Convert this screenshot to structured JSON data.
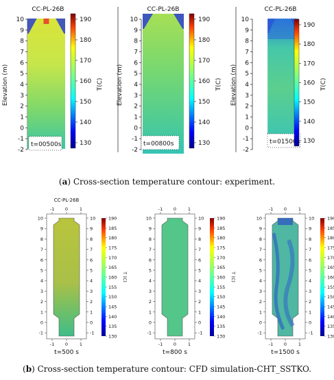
{
  "captions": {
    "a_letter": "a",
    "a_text": "Cross-section temperature contour: experiment.",
    "b_letter": "b",
    "b_text": "Cross-section temperature contour: CFD simulation-CHT_SSTKO."
  },
  "experiment": {
    "title": "CC-PL-26B",
    "y_axis_label": "Elevation (m)",
    "y_ticks": [
      "10",
      "9",
      "8",
      "7",
      "6",
      "5",
      "4",
      "3",
      "2",
      "1",
      "0",
      "-1",
      "-2"
    ],
    "colorbar_label": "T(C)",
    "colorbar_ticks": [
      "190",
      "180",
      "170",
      "160",
      "150",
      "140",
      "130"
    ],
    "colorbar_range": [
      130,
      190
    ],
    "panels": [
      {
        "time_label": "t=00500s"
      },
      {
        "time_label": "t=00800s"
      },
      {
        "time_label": "t=01500s"
      }
    ]
  },
  "simulation": {
    "title": "CC-PL-26B",
    "x_ticks": [
      "-1",
      "0",
      "1"
    ],
    "y_ticks": [
      "10",
      "9",
      "8",
      "7",
      "6",
      "5",
      "4",
      "3",
      "2",
      "1",
      "0",
      "-1"
    ],
    "colorbar_label": "T (C)",
    "colorbar_ticks": [
      "190",
      "185",
      "180",
      "175",
      "170",
      "165",
      "160",
      "155",
      "150",
      "145",
      "140",
      "135",
      "130"
    ],
    "panels": [
      {
        "time_label": "t=500 s"
      },
      {
        "time_label": "t=800 s"
      },
      {
        "time_label": "t=1500 s"
      }
    ]
  },
  "colors": {
    "jet_top": "#d7301f",
    "jet_mid": "#c8e63a",
    "jet_green": "#3bbf7a",
    "jet_bottom": "#1b1bb0"
  }
}
